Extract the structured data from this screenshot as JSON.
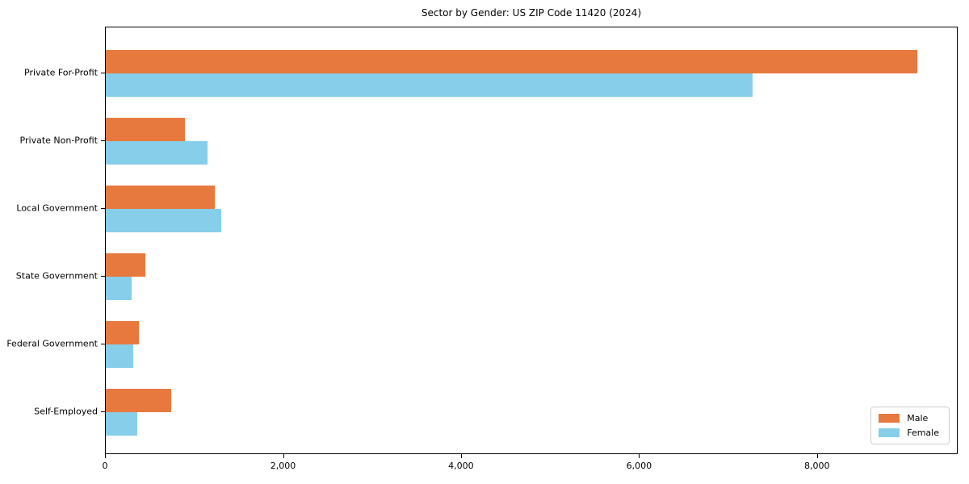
{
  "chart_data": {
    "type": "bar",
    "orientation": "horizontal",
    "title": "Sector by Gender: US ZIP Code 11420 (2024)",
    "categories": [
      "Private For-Profit",
      "Private Non-Profit",
      "Local Government",
      "State Government",
      "Federal Government",
      "Self-Employed"
    ],
    "series": [
      {
        "name": "Male",
        "color": "#E8793E",
        "values": [
          9120,
          890,
          1220,
          440,
          370,
          730
        ]
      },
      {
        "name": "Female",
        "color": "#87CEEB",
        "values": [
          7270,
          1140,
          1300,
          290,
          310,
          350
        ]
      }
    ],
    "xlabel": "",
    "ylabel": "",
    "xlim": [
      0,
      9580
    ],
    "xticks": [
      0,
      2000,
      4000,
      6000,
      8000
    ],
    "xtick_labels": [
      "0",
      "2,000",
      "4,000",
      "6,000",
      "8,000"
    ],
    "legend": {
      "entries": [
        "Male",
        "Female"
      ],
      "position": "lower right"
    },
    "grid": false,
    "background_color": "#ffffff",
    "spine_color": "#000000"
  }
}
